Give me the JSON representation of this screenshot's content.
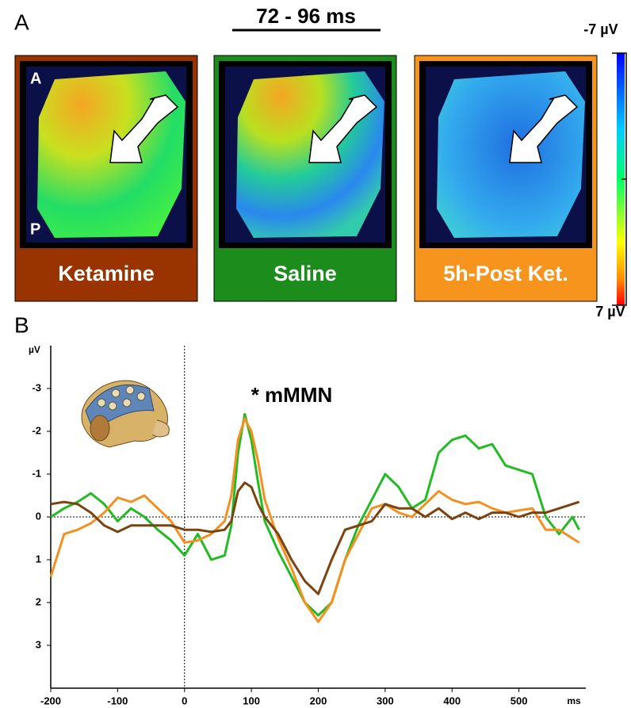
{
  "panel_a": {
    "label": "A",
    "title": "72  - 96 ms",
    "colorbar_labels": [
      "-7 µV",
      "7 µV"
    ],
    "orientation": [
      "A",
      "P"
    ],
    "maps": [
      {
        "label": "Ketamine",
        "color": "#993300"
      },
      {
        "label": "Saline",
        "color": "#1c8c1c"
      },
      {
        "label": "5h-Post Ket.",
        "color": "#f7941d"
      }
    ]
  },
  "chart_data": {
    "type": "line",
    "panel_label": "B",
    "annotation": "* mMMN",
    "xlabel": "ms",
    "ylabel": "µV",
    "x": [
      -200,
      -180,
      -160,
      -140,
      -120,
      -100,
      -80,
      -60,
      -40,
      -20,
      0,
      20,
      40,
      60,
      70,
      80,
      90,
      100,
      110,
      120,
      140,
      160,
      180,
      200,
      220,
      240,
      260,
      280,
      300,
      320,
      340,
      360,
      380,
      400,
      420,
      440,
      460,
      480,
      500,
      520,
      540,
      560,
      580,
      590
    ],
    "series": [
      {
        "color": "#22bb22",
        "values": [
          0,
          -0.2,
          -0.35,
          -0.55,
          -0.3,
          0.1,
          -0.2,
          0,
          0.3,
          0.55,
          0.9,
          0.4,
          1.0,
          0.9,
          0.2,
          -1.5,
          -2.4,
          -1.8,
          -0.8,
          0.1,
          0.8,
          1.4,
          2.0,
          2.3,
          2.0,
          1.0,
          0.2,
          -0.4,
          -1.0,
          -0.7,
          -0.2,
          -0.4,
          -1.5,
          -1.8,
          -1.9,
          -1.6,
          -1.7,
          -1.2,
          -1.1,
          -1.0,
          0.0,
          0.4,
          0.0,
          0.3
        ]
      },
      {
        "color": "#f39020",
        "values": [
          1.4,
          0.4,
          0.3,
          0.15,
          -0.1,
          -0.45,
          -0.35,
          -0.5,
          -0.2,
          0.1,
          0.6,
          0.55,
          0.4,
          0.1,
          -0.5,
          -1.8,
          -2.3,
          -2.0,
          -1.3,
          -0.4,
          0.5,
          1.2,
          2.0,
          2.45,
          2.0,
          1.0,
          0.4,
          -0.2,
          -0.3,
          -0.1,
          0.0,
          -0.3,
          -0.6,
          -0.4,
          -0.3,
          -0.35,
          -0.2,
          -0.1,
          -0.15,
          -0.2,
          0.3,
          0.3,
          0.5,
          0.6
        ]
      },
      {
        "color": "#7b4310",
        "values": [
          -0.3,
          -0.35,
          -0.3,
          -0.1,
          0.2,
          0.35,
          0.2,
          0.2,
          0.2,
          0.2,
          0.3,
          0.3,
          0.35,
          0.3,
          0.1,
          -0.6,
          -0.8,
          -0.7,
          -0.3,
          0.0,
          0.4,
          1.0,
          1.5,
          1.8,
          1.0,
          0.3,
          0.2,
          0.1,
          -0.3,
          -0.2,
          -0.2,
          0.0,
          -0.2,
          0.05,
          -0.1,
          0.05,
          -0.1,
          -0.1,
          0.0,
          -0.1,
          -0.1,
          -0.2,
          -0.3,
          -0.35
        ]
      }
    ],
    "xlim": [
      -200,
      600
    ],
    "ylim": [
      4,
      -4
    ],
    "xticks": [
      -200,
      -100,
      0,
      100,
      200,
      300,
      400,
      500
    ],
    "yticks": [
      -3,
      -2,
      -1,
      0,
      1,
      2,
      3
    ]
  }
}
